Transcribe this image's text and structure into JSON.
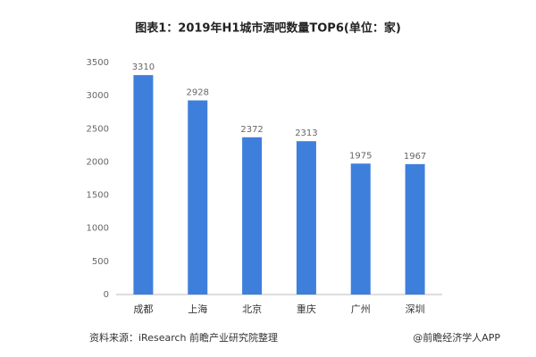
{
  "chart_data": {
    "type": "bar",
    "title": "图表1：2019年H1城市酒吧数量TOP6(单位：家)",
    "categories": [
      "成都",
      "上海",
      "北京",
      "重庆",
      "广州",
      "深圳"
    ],
    "values": [
      3310,
      2928,
      2372,
      2313,
      1975,
      1967
    ],
    "color": "#3f7fdc",
    "ylim": [
      0,
      3500
    ],
    "yticks": [
      0,
      500,
      1000,
      1500,
      2000,
      2500,
      3000,
      3500
    ],
    "grid": false,
    "source": "资料来源：iResearch 前瞻产业研究院整理",
    "credit": "@前瞻经济学人APP"
  }
}
